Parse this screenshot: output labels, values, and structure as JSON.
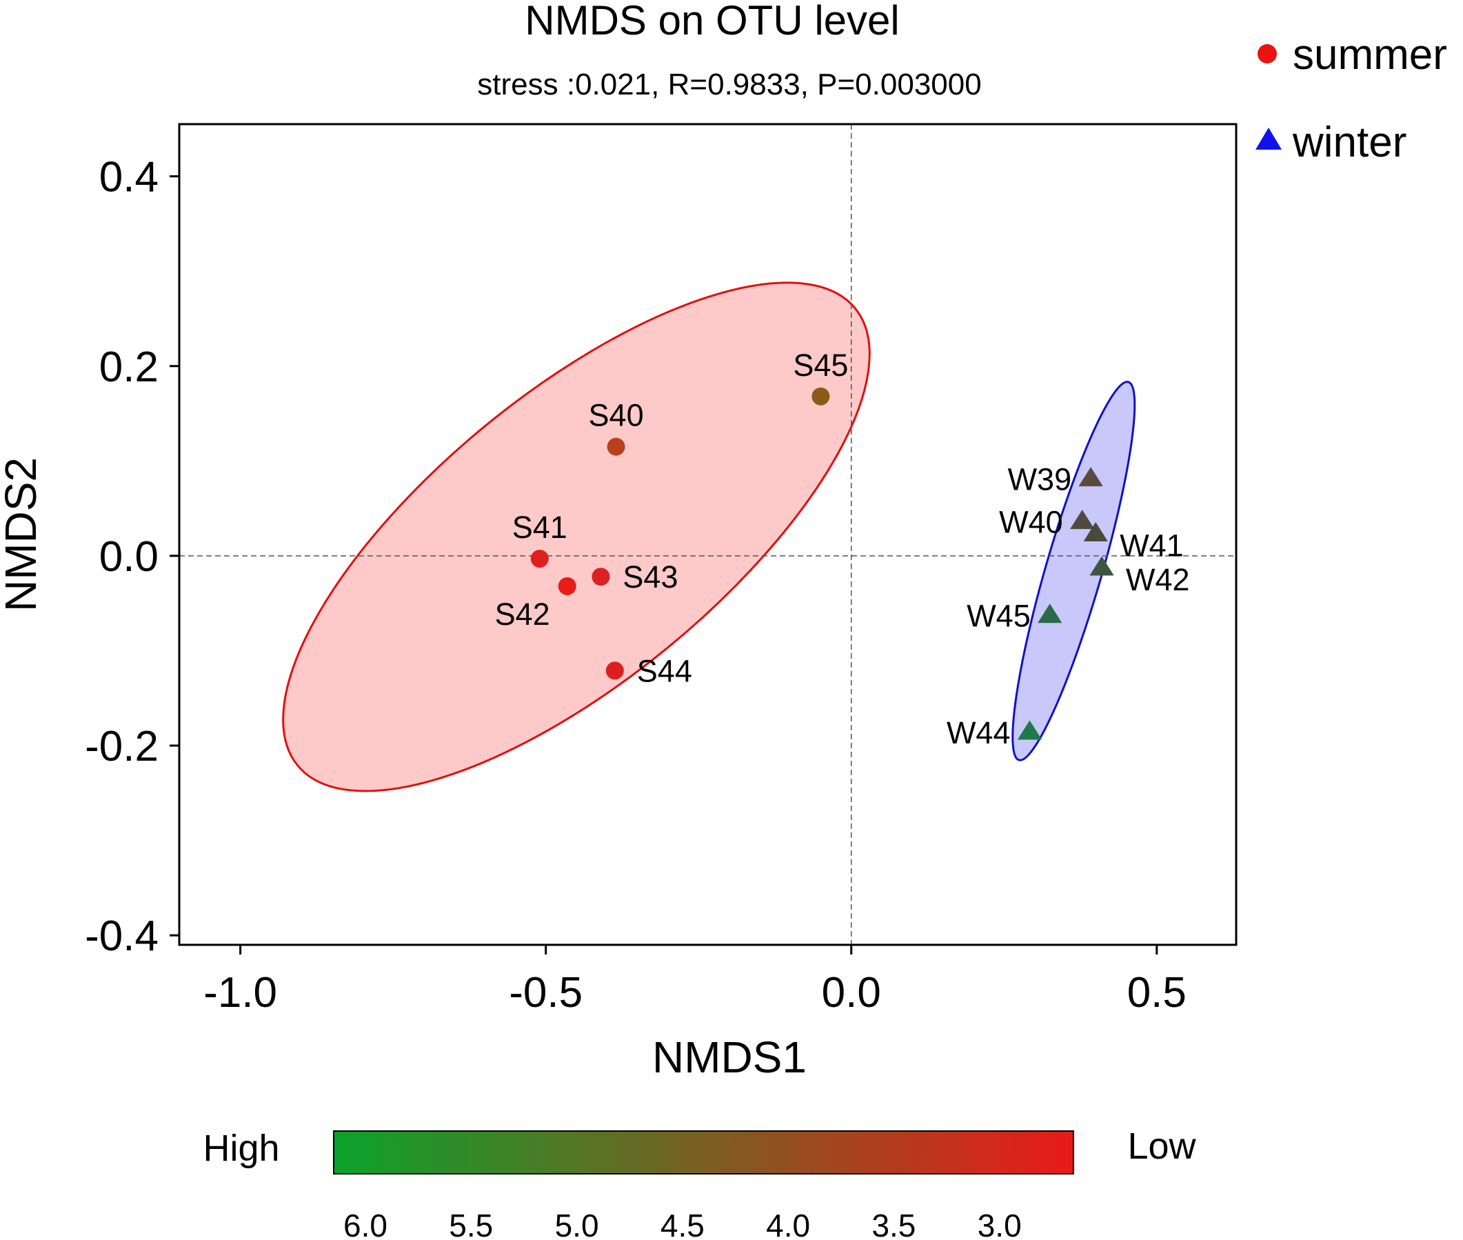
{
  "chart_data": {
    "type": "scatter",
    "title": "NMDS on OTU level",
    "subtitle": "stress :0.021, R=0.9833, P=0.003000",
    "xlabel": "NMDS1",
    "ylabel": "NMDS2",
    "xlim": [
      -1.1,
      0.63
    ],
    "ylim": [
      -0.41,
      0.455
    ],
    "x_ticks": [
      -1.0,
      -0.5,
      0.0,
      0.5
    ],
    "x_tick_labels": [
      "-1.0",
      "-0.5",
      "0.0",
      "0.5"
    ],
    "y_ticks": [
      -0.4,
      -0.2,
      0.0,
      0.2,
      0.4
    ],
    "y_tick_labels": [
      "-0.4",
      "-0.2",
      "0.0",
      "0.2",
      "0.4"
    ],
    "reference_lines": {
      "x": 0.0,
      "y": 0.0
    },
    "legend": {
      "position": "top-right",
      "entries": [
        {
          "label": "summer",
          "shape": "circle",
          "color": "#ee1111"
        },
        {
          "label": "winter",
          "shape": "triangle",
          "color": "#1111ee"
        }
      ]
    },
    "series": [
      {
        "name": "summer",
        "marker": "circle",
        "ellipse": {
          "cx": -0.45,
          "cy": 0.02,
          "rx": 0.59,
          "ry": 0.235,
          "angle_deg": 39.35,
          "fill": "#fdc9c9",
          "stroke": "#e01010"
        },
        "points": [
          {
            "label": "S40",
            "x": -0.385,
            "y": 0.115,
            "color": "#b8401f",
            "label_pos": "above"
          },
          {
            "label": "S41",
            "x": -0.51,
            "y": -0.003,
            "color": "#e01f1f",
            "label_pos": "above"
          },
          {
            "label": "S42",
            "x": -0.465,
            "y": -0.032,
            "color": "#e81a1a",
            "label_pos": "below-left"
          },
          {
            "label": "S43",
            "x": -0.41,
            "y": -0.022,
            "color": "#dd2020",
            "label_pos": "right"
          },
          {
            "label": "S44",
            "x": -0.387,
            "y": -0.121,
            "color": "#dd1e1e",
            "label_pos": "right"
          },
          {
            "label": "S45",
            "x": -0.05,
            "y": 0.168,
            "color": "#8b5a17",
            "label_pos": "above"
          }
        ]
      },
      {
        "name": "winter",
        "marker": "triangle",
        "ellipse": {
          "cx": 0.364,
          "cy": -0.016,
          "rx": 0.322,
          "ry": 0.046,
          "angle_deg": 73.85,
          "fill": "#c8c8fa",
          "stroke": "#1010cc"
        },
        "points": [
          {
            "label": "W39",
            "x": 0.392,
            "y": 0.081,
            "color": "#5a4a3e",
            "label_pos": "left"
          },
          {
            "label": "W40",
            "x": 0.378,
            "y": 0.036,
            "color": "#504a40",
            "label_pos": "left"
          },
          {
            "label": "W41",
            "x": 0.4,
            "y": 0.023,
            "color": "#4a4a3c",
            "label_pos": "below-right"
          },
          {
            "label": "W42",
            "x": 0.41,
            "y": -0.013,
            "color": "#3c5640",
            "label_pos": "below-right"
          },
          {
            "label": "W45",
            "x": 0.325,
            "y": -0.063,
            "color": "#2a6a48",
            "label_pos": "left"
          },
          {
            "label": "W44",
            "x": 0.292,
            "y": -0.186,
            "color": "#1e7a48",
            "label_pos": "left"
          }
        ]
      }
    ],
    "colorbar": {
      "label_high": "High",
      "label_low": "Low",
      "range": [
        6.15,
        2.65
      ],
      "color_high": "#0aa32a",
      "color_low": "#ea1a1a",
      "ticks": [
        6.0,
        5.5,
        5.0,
        4.5,
        4.0,
        3.5,
        3.0
      ],
      "tick_labels": [
        "6.0",
        "5.5",
        "5.0",
        "4.5",
        "4.0",
        "3.5",
        "3.0"
      ]
    }
  }
}
